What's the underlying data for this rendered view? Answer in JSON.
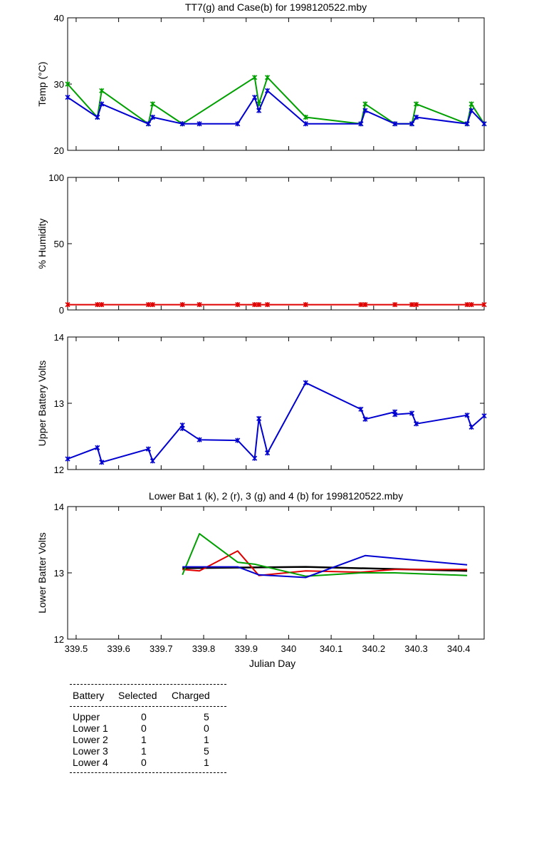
{
  "colors": {
    "green": "#00a000",
    "blue": "#0000d0",
    "red": "#e00000",
    "black": "#000000"
  },
  "xaxis": {
    "label": "Julian Day",
    "range": [
      339.48,
      340.46
    ],
    "ticks": [
      339.5,
      339.6,
      339.7,
      339.8,
      339.9,
      340.0,
      340.1,
      340.2,
      340.3,
      340.4
    ],
    "tick_labels": [
      "339.5",
      "339.6",
      "339.7",
      "339.8",
      "339.9",
      "340",
      "340.1",
      "340.2",
      "340.3",
      "340.4"
    ]
  },
  "chart_data": [
    {
      "type": "line",
      "title": "TT7(g) and Case(b) for 1998120522.mby",
      "ylabel": "Temp  (°C)",
      "ylim": [
        20,
        40
      ],
      "yticks": [
        20,
        30,
        40
      ],
      "ytick_labels": [
        "20",
        "30",
        "40"
      ],
      "series": [
        {
          "name": "TT7",
          "color": "green",
          "markers": true,
          "x": [
            339.48,
            339.55,
            339.56,
            339.67,
            339.68,
            339.75,
            339.92,
            339.93,
            339.95,
            340.04,
            340.17,
            340.18,
            340.25,
            340.29,
            340.3,
            340.42,
            340.43,
            340.46
          ],
          "y": [
            30,
            25,
            29,
            24,
            27,
            24,
            31,
            27,
            31,
            25,
            24,
            27,
            24,
            24,
            27,
            24,
            27,
            24
          ]
        },
        {
          "name": "Case",
          "color": "blue",
          "markers": true,
          "x": [
            339.48,
            339.55,
            339.56,
            339.67,
            339.68,
            339.75,
            339.79,
            339.88,
            339.92,
            339.93,
            339.95,
            340.04,
            340.17,
            340.18,
            340.25,
            340.29,
            340.3,
            340.42,
            340.43,
            340.46
          ],
          "y": [
            28,
            25,
            27,
            24,
            25,
            24,
            24,
            24,
            28,
            26,
            29,
            24,
            24,
            26,
            24,
            24,
            25,
            24,
            26,
            24
          ]
        }
      ]
    },
    {
      "type": "line",
      "title": "",
      "ylabel": "% Humidity",
      "ylim": [
        0,
        100
      ],
      "yticks": [
        0,
        50,
        100
      ],
      "ytick_labels": [
        "0",
        "50",
        "100"
      ],
      "series": [
        {
          "name": "Humidity",
          "color": "red",
          "markers": true,
          "x": [
            339.48,
            339.55,
            339.56,
            339.67,
            339.68,
            339.75,
            339.79,
            339.88,
            339.92,
            339.93,
            339.95,
            340.04,
            340.17,
            340.18,
            340.25,
            340.29,
            340.3,
            340.42,
            340.43,
            340.46
          ],
          "y": [
            4,
            4,
            4,
            4,
            4,
            4,
            4,
            4,
            4,
            4,
            4,
            4,
            4,
            4,
            4,
            4,
            4,
            4,
            4,
            4
          ]
        }
      ]
    },
    {
      "type": "line",
      "title": "",
      "ylabel": "Upper Battery Volts",
      "ylim": [
        12,
        14
      ],
      "yticks": [
        12,
        13,
        14
      ],
      "ytick_labels": [
        "12",
        "13",
        "14"
      ],
      "series": [
        {
          "name": "Upper",
          "color": "blue",
          "markers": true,
          "x": [
            339.48,
            339.55,
            339.56,
            339.67,
            339.68,
            339.75,
            339.75,
            339.79,
            339.88,
            339.92,
            339.93,
            339.95,
            340.04,
            340.17,
            340.18,
            340.25,
            340.25,
            340.29,
            340.3,
            340.42,
            340.43,
            340.46
          ],
          "y": [
            12.16,
            12.33,
            12.11,
            12.31,
            12.13,
            12.67,
            12.62,
            12.45,
            12.44,
            12.17,
            12.77,
            12.25,
            13.31,
            12.91,
            12.76,
            12.87,
            12.83,
            12.85,
            12.69,
            12.82,
            12.64,
            12.81
          ]
        }
      ]
    },
    {
      "type": "line",
      "title": "Lower Bat 1 (k), 2 (r), 3 (g) and 4 (b) for 1998120522.mby",
      "ylabel": "Lower Batter Volts",
      "ylim": [
        12,
        14
      ],
      "yticks": [
        12,
        13,
        14
      ],
      "ytick_labels": [
        "12",
        "13",
        "14"
      ],
      "series": [
        {
          "name": "Lower 1",
          "color": "black",
          "markers": false,
          "x": [
            339.75,
            339.88,
            340.04,
            340.42
          ],
          "y": [
            13.07,
            13.08,
            13.09,
            13.03
          ]
        },
        {
          "name": "Lower 2",
          "color": "red",
          "markers": false,
          "x": [
            339.75,
            339.79,
            339.88,
            339.93,
            340.04,
            340.17,
            340.25,
            340.42
          ],
          "y": [
            13.05,
            13.03,
            13.33,
            12.96,
            13.03,
            13.01,
            13.05,
            13.05
          ]
        },
        {
          "name": "Lower 3",
          "color": "green",
          "markers": false,
          "x": [
            339.75,
            339.79,
            339.88,
            339.92,
            340.04,
            340.17,
            340.25,
            340.42
          ],
          "y": [
            12.97,
            13.59,
            13.16,
            13.13,
            12.95,
            13.0,
            13.0,
            12.96
          ]
        },
        {
          "name": "Lower 4",
          "color": "blue",
          "markers": false,
          "x": [
            339.75,
            339.88,
            339.93,
            340.04,
            340.18,
            340.42
          ],
          "y": [
            13.09,
            13.09,
            12.97,
            12.93,
            13.26,
            13.12
          ]
        }
      ]
    }
  ],
  "table": {
    "headers": [
      "Battery",
      "Selected",
      "Charged"
    ],
    "rows": [
      [
        "Upper",
        "0",
        "5"
      ],
      [
        "Lower 1",
        "0",
        "0"
      ],
      [
        "Lower 2",
        "1",
        "1"
      ],
      [
        "Lower 3",
        "1",
        "5"
      ],
      [
        "Lower 4",
        "0",
        "1"
      ]
    ]
  }
}
